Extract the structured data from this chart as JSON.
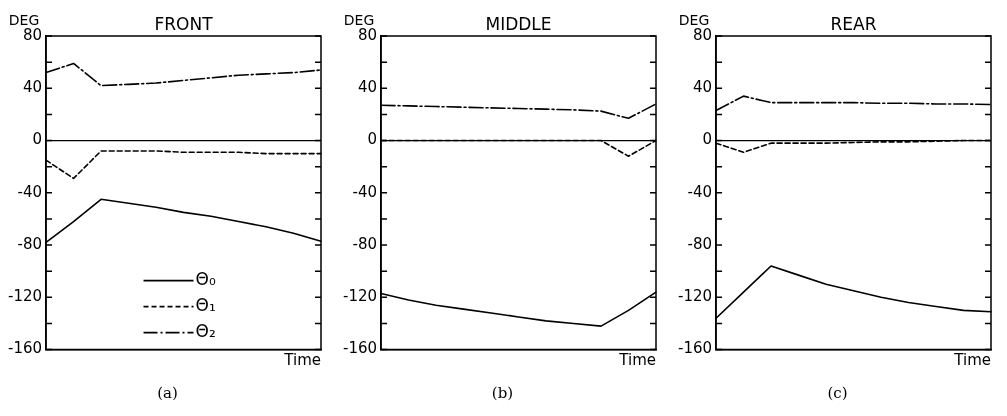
{
  "chart_data": [
    {
      "type": "line",
      "title": "FRONT",
      "ylabel": "DEG",
      "xlabel": "Time",
      "annotations": [
        "(a)"
      ],
      "categories": [
        null,
        null,
        null,
        null,
        null,
        null,
        null,
        null,
        null,
        null,
        null
      ],
      "ylim": [
        -160,
        80
      ],
      "yticks": [
        -160,
        {
          "value": -140,
          "label": null
        },
        -120,
        {
          "value": -100,
          "label": null
        },
        -80,
        {
          "value": -60,
          "label": null
        },
        -40,
        {
          "value": -20,
          "label": null
        },
        0,
        {
          "value": 20,
          "label": null
        },
        40,
        {
          "value": 60,
          "label": null
        },
        80
      ],
      "grid": false,
      "legend": "bottom",
      "marker": "none",
      "ref_lines": [
        {
          "axis": "y",
          "value": 0,
          "color": "#000000",
          "line_style": "solid"
        }
      ],
      "series": [
        {
          "name": "Θ₀",
          "color": "#000000",
          "line_style": "solid",
          "values": [
            -78,
            -62,
            -45,
            -48,
            -51,
            -55,
            -58,
            -62,
            -66,
            -71,
            -77
          ]
        },
        {
          "name": "Θ₁",
          "color": "#000000",
          "line_style": "dashed",
          "values": [
            -15,
            -29,
            -8,
            -8,
            -8,
            -9,
            -9,
            -9,
            -10,
            -10,
            -10
          ]
        },
        {
          "name": "Θ₂",
          "color": "#000000",
          "line_style": "dashdot",
          "values": [
            52,
            59,
            42,
            43,
            44,
            46,
            48,
            50,
            51,
            52,
            54
          ]
        }
      ]
    },
    {
      "type": "line",
      "title": "MIDDLE",
      "ylabel": "DEG",
      "xlabel": "Time",
      "annotations": [
        "(b)"
      ],
      "categories": [
        null,
        null,
        null,
        null,
        null,
        null,
        null,
        null,
        null,
        null,
        null
      ],
      "ylim": [
        -160,
        80
      ],
      "yticks": [
        -160,
        {
          "value": -140,
          "label": null
        },
        -120,
        {
          "value": -100,
          "label": null
        },
        -80,
        {
          "value": -60,
          "label": null
        },
        -40,
        {
          "value": -20,
          "label": null
        },
        0,
        {
          "value": 20,
          "label": null
        },
        40,
        {
          "value": 60,
          "label": null
        },
        80
      ],
      "grid": false,
      "marker": "none",
      "ref_lines": [
        {
          "axis": "y",
          "value": 0,
          "color": "#000000",
          "line_style": "solid"
        }
      ],
      "series": [
        {
          "color": "#000000",
          "line_style": "solid",
          "values": [
            -117,
            -122,
            -126,
            -129,
            -132,
            -135,
            -138,
            -140,
            -142,
            -130,
            -116
          ]
        },
        {
          "color": "#000000",
          "line_style": "dashed",
          "values": [
            0,
            0,
            0,
            0,
            0,
            0,
            0,
            0,
            0,
            -12,
            0
          ]
        },
        {
          "color": "#000000",
          "line_style": "dashdot",
          "values": [
            27,
            26.5,
            26,
            25.5,
            25,
            24.5,
            24,
            23.5,
            22.5,
            17,
            28
          ]
        }
      ]
    },
    {
      "type": "line",
      "title": "REAR",
      "ylabel": "DEG",
      "xlabel": "Time",
      "annotations": [
        "(c)"
      ],
      "categories": [
        null,
        null,
        null,
        null,
        null,
        null,
        null,
        null,
        null,
        null,
        null
      ],
      "ylim": [
        -160,
        80
      ],
      "yticks": [
        -160,
        {
          "value": -140,
          "label": null
        },
        -120,
        {
          "value": -100,
          "label": null
        },
        -80,
        {
          "value": -60,
          "label": null
        },
        -40,
        {
          "value": -20,
          "label": null
        },
        0,
        {
          "value": 20,
          "label": null
        },
        40,
        {
          "value": 60,
          "label": null
        },
        80
      ],
      "grid": false,
      "marker": "none",
      "ref_lines": [
        {
          "axis": "y",
          "value": 0,
          "color": "#000000",
          "line_style": "solid"
        }
      ],
      "series": [
        {
          "color": "#000000",
          "line_style": "solid",
          "values": [
            -136,
            -116,
            -96,
            -103,
            -110,
            -115,
            -120,
            -124,
            -127,
            -130,
            -131
          ]
        },
        {
          "color": "#000000",
          "line_style": "dashed",
          "values": [
            -2,
            -9,
            -2,
            -2,
            -2,
            -1.5,
            -1,
            -1,
            -0.5,
            0,
            0
          ]
        },
        {
          "color": "#000000",
          "line_style": "dashdot",
          "values": [
            23,
            34,
            29,
            29,
            29,
            29,
            28.5,
            28.5,
            28,
            28,
            27.5
          ]
        }
      ]
    }
  ]
}
